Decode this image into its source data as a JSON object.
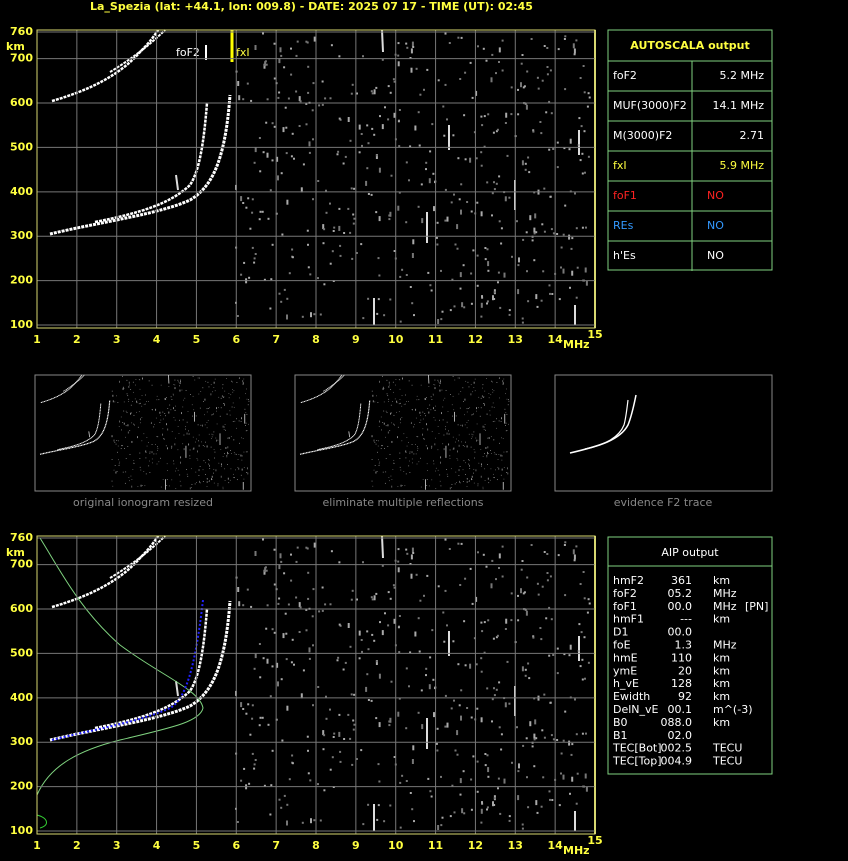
{
  "header": {
    "title": "La_Spezia (lat: +44.1, lon: 009.8) - DATE: 2025 07 17 - TIME (UT): 02:45"
  },
  "ionogram": {
    "xlim": [
      1,
      15
    ],
    "xticks": [
      1,
      2,
      3,
      4,
      5,
      6,
      7,
      8,
      9,
      10,
      11,
      12,
      13,
      14,
      15
    ],
    "ylim": [
      100,
      760
    ],
    "yticks": [
      100,
      200,
      300,
      400,
      500,
      600,
      700,
      760
    ],
    "y_unit": "km",
    "x_unit": "MHz",
    "labels": [
      "foF2",
      "fxI"
    ]
  },
  "autoscala": {
    "title": "AUTOSCALA output",
    "rows": [
      [
        "foF2",
        "5.2 MHz"
      ],
      [
        "MUF(3000)F2",
        "14.1 MHz"
      ],
      [
        "M(3000)F2",
        "2.71"
      ],
      [
        "fxI",
        "5.9 MHz"
      ],
      [
        "foF1",
        "NO"
      ],
      [
        "REs",
        "NO"
      ],
      [
        "h'Es",
        "NO"
      ]
    ]
  },
  "thumbnails": [
    "original ionogram resized",
    "eliminate multiple reflections",
    "evidence F2 trace"
  ],
  "aip": {
    "title": "AIP output",
    "rows": [
      [
        "hmF2",
        "361",
        "km"
      ],
      [
        "foF2",
        "05.2",
        "MHz"
      ],
      [
        "foF1",
        "00.0",
        "MHz",
        "[PN]"
      ],
      [
        "hmF1",
        "---",
        "km"
      ],
      [
        "D1",
        "00.0"
      ],
      [
        "foE",
        "1.3",
        "MHz"
      ],
      [
        "hmE",
        "110",
        "km"
      ],
      [
        "ymE",
        "20",
        "km"
      ],
      [
        "h_vE",
        "128",
        "km"
      ],
      [
        "Ewidth",
        "92",
        "km"
      ],
      [
        "DelN_vE",
        "00.1",
        "m^(-3)"
      ],
      [
        "B0",
        "088.0",
        "km"
      ],
      [
        "B1",
        "02.0"
      ],
      [
        "TEC[Bot]",
        "002.5",
        "TECU"
      ],
      [
        "TEC[Top]",
        "004.9",
        "TECU"
      ]
    ]
  }
}
